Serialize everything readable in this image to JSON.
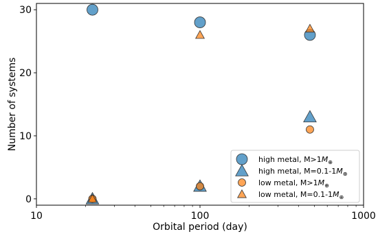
{
  "chart_data": {
    "type": "scatter",
    "title": "",
    "xlabel": "Orbital period (day)",
    "ylabel": "Number of systems",
    "xscale": "log",
    "xlim": [
      10,
      1000
    ],
    "ylim": [
      -1,
      31
    ],
    "x_ticks": [
      10,
      100,
      1000
    ],
    "x_tick_labels": [
      "10",
      "100",
      "1000"
    ],
    "y_ticks": [
      0,
      10,
      20,
      30
    ],
    "y_tick_labels": [
      "0",
      "10",
      "20",
      "30"
    ],
    "grid": false,
    "legend_position": "lower-right",
    "series": [
      {
        "name_prefix": "high metal, M>1",
        "name_unit": "M",
        "name_sub": "⊕",
        "marker": "circle",
        "size": "large",
        "color": "#1f77b4",
        "x": [
          22,
          100,
          470
        ],
        "y": [
          30,
          28,
          26
        ]
      },
      {
        "name_prefix": "high metal, M=0.1-1",
        "name_unit": "M",
        "name_sub": "⊕",
        "marker": "triangle",
        "size": "large",
        "color": "#1f77b4",
        "x": [
          22,
          100,
          470
        ],
        "y": [
          0,
          2,
          13
        ]
      },
      {
        "name_prefix": "low metal,  M>1",
        "name_unit": "M",
        "name_sub": "⊕",
        "marker": "circle",
        "size": "small",
        "color": "#ff7f0e",
        "x": [
          22,
          100,
          470
        ],
        "y": [
          0,
          2,
          11
        ]
      },
      {
        "name_prefix": "low metal,  M=0.1-1",
        "name_unit": "M",
        "name_sub": "⊕",
        "marker": "triangle",
        "size": "small",
        "color": "#ff7f0e",
        "x": [
          22,
          100,
          470
        ],
        "y": [
          0,
          26,
          27
        ]
      }
    ]
  }
}
